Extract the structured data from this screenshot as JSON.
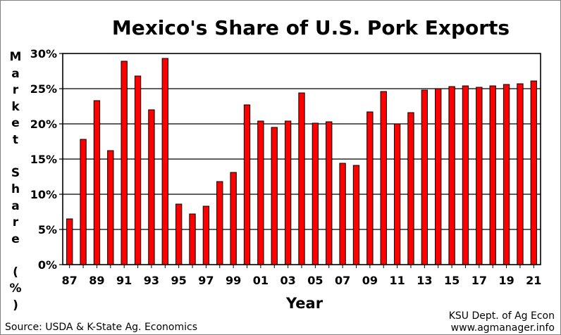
{
  "chart_data": {
    "type": "bar",
    "title": "Mexico's Share of U.S. Pork Exports",
    "ylabel": "Market Share (%)",
    "xlabel": "Year",
    "ylim": [
      0,
      30
    ],
    "yticks": [
      "0%",
      "5%",
      "10%",
      "15%",
      "20%",
      "25%",
      "30%"
    ],
    "grid": true,
    "bar_color": "#ff0000",
    "categories": [
      "87",
      "88",
      "89",
      "90",
      "91",
      "92",
      "93",
      "94",
      "95",
      "96",
      "97",
      "98",
      "99",
      "00",
      "01",
      "02",
      "03",
      "04",
      "05",
      "06",
      "07",
      "08",
      "09",
      "10",
      "11",
      "12",
      "13",
      "14",
      "15",
      "16",
      "17",
      "18",
      "19",
      "20",
      "21"
    ],
    "xtick_labels": [
      "87",
      "89",
      "91",
      "93",
      "95",
      "97",
      "99",
      "01",
      "03",
      "05",
      "07",
      "09",
      "11",
      "13",
      "15",
      "17",
      "19",
      "21"
    ],
    "values": [
      6.5,
      17.8,
      23.3,
      16.2,
      28.9,
      26.8,
      22.0,
      29.3,
      8.6,
      7.2,
      8.3,
      11.8,
      13.1,
      22.7,
      20.4,
      19.5,
      20.4,
      24.4,
      20.1,
      20.3,
      14.4,
      14.1,
      21.7,
      24.6,
      20.0,
      21.6,
      24.8,
      25.0,
      25.3,
      25.4,
      25.2,
      25.4,
      25.6,
      25.7,
      26.1
    ]
  },
  "ylabel_letters": [
    "M",
    "a",
    "r",
    "k",
    "e",
    "t",
    "",
    "S",
    "h",
    "a",
    "r",
    "e",
    "",
    "(",
    "%",
    ")"
  ],
  "source": "Source:  USDA & K-State Ag. Economics",
  "credit_line1": "KSU Dept. of Ag Econ",
  "credit_line2": "www.agmanager.info"
}
